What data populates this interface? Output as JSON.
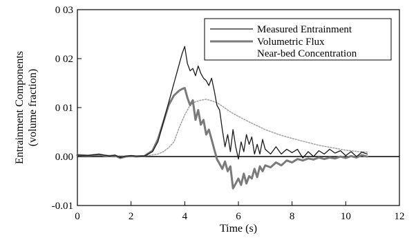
{
  "chart_data": {
    "type": "line",
    "title": "",
    "xlabel": "Time (s)",
    "ylabel": [
      "Entrainment Components",
      "(volume fraction)"
    ],
    "xlim": [
      0,
      12
    ],
    "ylim": [
      -0.01,
      0.03
    ],
    "x_ticks": [
      0,
      2,
      4,
      6,
      8,
      10,
      12
    ],
    "x_tick_labels": [
      "0",
      "2",
      "4",
      "6",
      "8",
      "10",
      "12"
    ],
    "y_ticks": [
      -0.01,
      0.0,
      0.01,
      0.02,
      0.03
    ],
    "y_tick_labels": [
      "-0.01",
      "0.00",
      "0 01",
      "0 02",
      "0 03"
    ],
    "grid": false,
    "zero_line": true,
    "legend_position": "top-right",
    "series": [
      {
        "name": "Measured Entrainment",
        "color": "#1a1a1a",
        "style": "solid-thin",
        "x": [
          0.0,
          0.4,
          0.8,
          1.0,
          1.2,
          1.4,
          1.6,
          1.8,
          2.0,
          2.2,
          2.5,
          2.8,
          3.0,
          3.2,
          3.4,
          3.6,
          3.8,
          3.9,
          4.0,
          4.1,
          4.2,
          4.3,
          4.4,
          4.5,
          4.6,
          4.7,
          4.8,
          4.9,
          5.0,
          5.1,
          5.2,
          5.3,
          5.4,
          5.5,
          5.6,
          5.7,
          5.8,
          5.9,
          6.0,
          6.1,
          6.2,
          6.3,
          6.4,
          6.5,
          6.6,
          6.7,
          6.8,
          6.9,
          7.0,
          7.2,
          7.4,
          7.6,
          7.8,
          8.0,
          8.2,
          8.4,
          8.6,
          8.8,
          9.0,
          9.2,
          9.4,
          9.6,
          9.8,
          10.0,
          10.2,
          10.4,
          10.6,
          10.8
        ],
        "values": [
          0.0003,
          0.0002,
          0.0005,
          0.0003,
          0.0001,
          0.0003,
          -0.0002,
          0.0001,
          0.0002,
          0.0001,
          0.0001,
          0.001,
          0.003,
          0.007,
          0.011,
          0.015,
          0.019,
          0.021,
          0.0225,
          0.019,
          0.0175,
          0.018,
          0.0165,
          0.0185,
          0.017,
          0.016,
          0.0155,
          0.0145,
          0.016,
          0.0135,
          0.0105,
          0.0095,
          0.0055,
          0.002,
          0.0045,
          0.001,
          0.0055,
          0.002,
          -0.0005,
          0.003,
          0.001,
          0.0045,
          0.0025,
          0.004,
          0.0005,
          0.0025,
          0.0005,
          0.0035,
          0.0015,
          0.0005,
          0.002,
          0.0005,
          0.0015,
          0.0008,
          0.0015,
          -0.0003,
          0.001,
          0.0,
          0.0012,
          0.0005,
          0.0015,
          0.0007,
          0.0012,
          0.0002,
          0.001,
          0.0,
          0.0009,
          0.0005
        ]
      },
      {
        "name": "Volumetric Flux",
        "color": "#7a7a7a",
        "style": "solid-thick",
        "x": [
          0.0,
          0.4,
          0.8,
          1.0,
          1.2,
          1.4,
          1.6,
          1.8,
          2.0,
          2.2,
          2.5,
          2.8,
          3.0,
          3.2,
          3.4,
          3.6,
          3.8,
          3.9,
          4.0,
          4.1,
          4.2,
          4.3,
          4.4,
          4.5,
          4.6,
          4.7,
          4.8,
          4.9,
          5.0,
          5.1,
          5.2,
          5.3,
          5.4,
          5.5,
          5.6,
          5.7,
          5.8,
          5.9,
          6.0,
          6.1,
          6.2,
          6.3,
          6.4,
          6.5,
          6.6,
          6.7,
          6.8,
          6.9,
          7.0,
          7.2,
          7.4,
          7.6,
          7.8,
          8.0,
          8.2,
          8.4,
          8.6,
          8.8,
          9.0,
          9.2,
          9.4,
          9.6,
          9.8,
          10.0,
          10.2,
          10.4,
          10.6,
          10.8
        ],
        "values": [
          0.0003,
          0.0002,
          0.0004,
          0.0002,
          0.0001,
          0.0002,
          -0.0003,
          0.0,
          0.0001,
          0.0,
          0.0001,
          0.0012,
          0.0035,
          0.007,
          0.0105,
          0.0125,
          0.0135,
          0.0138,
          0.014,
          0.012,
          0.0105,
          0.0115,
          0.0075,
          0.0095,
          0.0065,
          0.0075,
          0.0045,
          0.0055,
          0.0035,
          0.0015,
          -0.0005,
          -0.0015,
          -0.0025,
          -0.001,
          -0.003,
          -0.002,
          -0.0065,
          -0.0055,
          -0.0045,
          -0.0058,
          -0.0035,
          -0.0055,
          -0.004,
          -0.0045,
          -0.0025,
          -0.0042,
          -0.002,
          -0.003,
          -0.0018,
          -0.0022,
          -0.0012,
          -0.0018,
          -0.0008,
          -0.0012,
          -0.0005,
          -0.0008,
          -0.0004,
          -0.0006,
          -0.0002,
          -0.0005,
          -0.0002,
          -0.0004,
          0.0,
          -0.0003,
          0.0001,
          -0.0002,
          0.0003,
          0.0
        ]
      },
      {
        "name": "Near-bed Concentration",
        "color": "#9a9a9a",
        "style": "dotted",
        "x": [
          0.0,
          1.0,
          2.0,
          2.5,
          3.0,
          3.2,
          3.4,
          3.6,
          3.8,
          4.0,
          4.2,
          4.4,
          4.6,
          4.8,
          5.0,
          5.2,
          5.4,
          5.6,
          5.8,
          6.0,
          6.5,
          7.0,
          7.5,
          8.0,
          8.5,
          9.0,
          9.5,
          10.0,
          10.5,
          10.8
        ],
        "values": [
          0.0002,
          0.0002,
          0.0001,
          0.0001,
          0.0005,
          0.001,
          0.0018,
          0.003,
          0.006,
          0.0085,
          0.0105,
          0.0112,
          0.0115,
          0.0117,
          0.0114,
          0.011,
          0.0103,
          0.0095,
          0.0088,
          0.0082,
          0.0068,
          0.0055,
          0.0045,
          0.0037,
          0.003,
          0.0023,
          0.0018,
          0.0013,
          0.001,
          0.0009
        ]
      }
    ]
  }
}
